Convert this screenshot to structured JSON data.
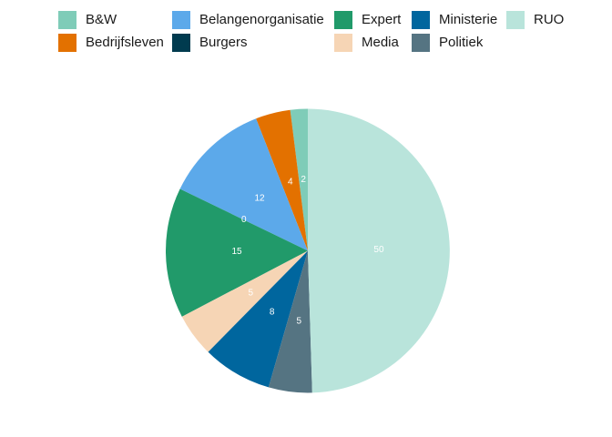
{
  "chart_data": {
    "type": "pie",
    "title": "",
    "legend_position": "top",
    "categories": [
      "B&W",
      "Bedrijfsleven",
      "Belangenorganisatie",
      "Burgers",
      "Expert",
      "Media",
      "Ministerie",
      "Politiek",
      "RUO"
    ],
    "values": [
      2,
      4,
      12,
      0,
      15,
      5,
      8,
      5,
      50
    ],
    "data_labels": [
      "2",
      "4",
      "12",
      "0",
      "15",
      "5",
      "8",
      "5",
      "50"
    ],
    "colors": [
      "#7fccb8",
      "#e37100",
      "#5ca9ea",
      "#003b4f",
      "#219a6a",
      "#f6d5b5",
      "#00669e",
      "#557482",
      "#b9e4db"
    ]
  }
}
